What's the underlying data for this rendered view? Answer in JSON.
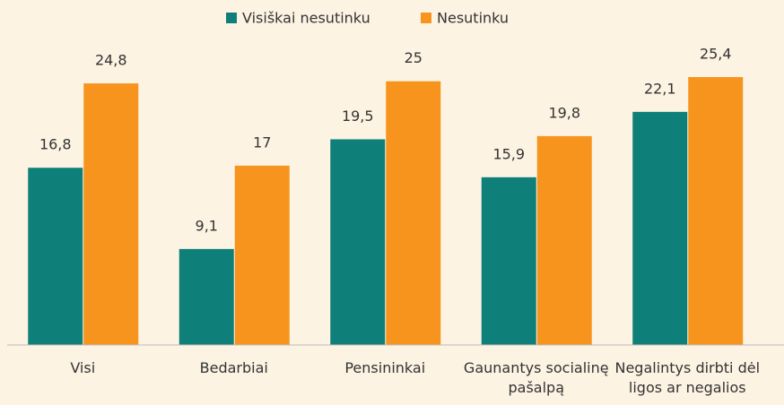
{
  "chart_data": {
    "type": "bar",
    "categories": [
      "Visi",
      "Bedarbiai",
      "Pensininkai",
      "Gaunantys socialinę pašalpą",
      "Negalintys dirbti dėl ligos ar negalios"
    ],
    "series": [
      {
        "name": "Visiškai nesutinku",
        "color": "#0f7f79",
        "values": [
          16.8,
          9.1,
          19.5,
          15.9,
          22.1
        ],
        "value_labels": [
          "16,8",
          "9,1",
          "19,5",
          "15,9",
          "22,1"
        ]
      },
      {
        "name": "Nesutinku",
        "color": "#f7941d",
        "values": [
          24.8,
          17,
          25,
          19.8,
          25.4
        ],
        "value_labels": [
          "24,8",
          "17",
          "25",
          "19,8",
          "25,4"
        ]
      }
    ],
    "legend": "top"
  }
}
